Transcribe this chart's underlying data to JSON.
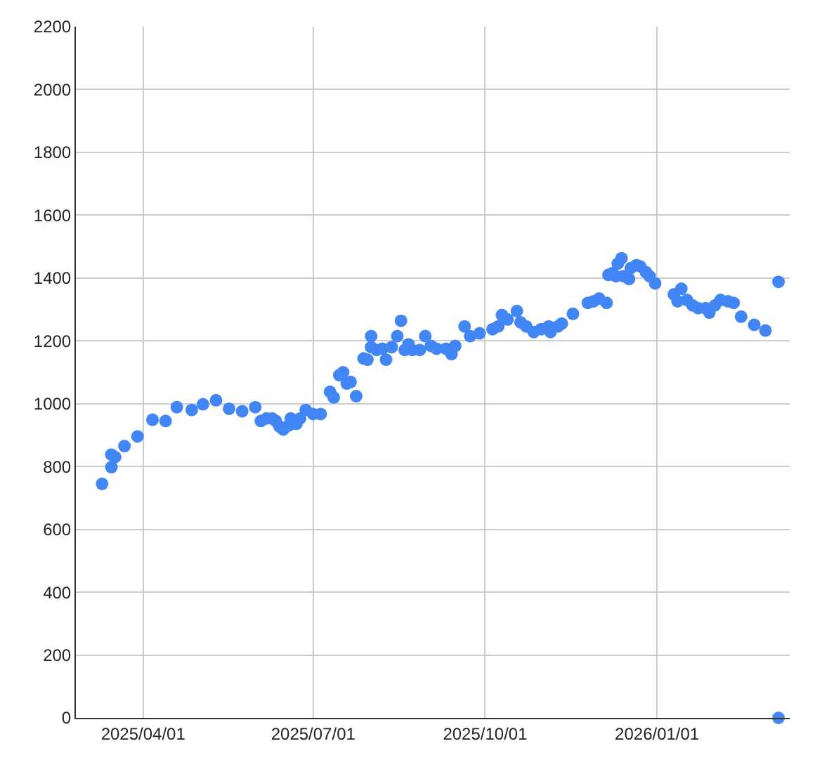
{
  "chart_data": {
    "type": "scatter",
    "x": [
      "2025-03-10",
      "2025-03-15",
      "2025-03-15",
      "2025-03-17",
      "2025-03-22",
      "2025-03-29",
      "2025-04-06",
      "2025-04-13",
      "2025-04-19",
      "2025-04-27",
      "2025-05-03",
      "2025-05-10",
      "2025-05-17",
      "2025-05-24",
      "2025-05-31",
      "2025-06-03",
      "2025-06-06",
      "2025-06-09",
      "2025-06-11",
      "2025-06-13",
      "2025-06-15",
      "2025-06-18",
      "2025-06-19",
      "2025-06-22",
      "2025-06-24",
      "2025-06-27",
      "2025-07-01",
      "2025-07-05",
      "2025-07-10",
      "2025-07-12",
      "2025-07-15",
      "2025-07-17",
      "2025-07-19",
      "2025-07-21",
      "2025-07-24",
      "2025-07-28",
      "2025-07-30",
      "2025-08-01",
      "2025-08-01",
      "2025-08-04",
      "2025-08-07",
      "2025-08-09",
      "2025-08-12",
      "2025-08-15",
      "2025-08-17",
      "2025-08-19",
      "2025-08-21",
      "2025-08-23",
      "2025-08-27",
      "2025-08-30",
      "2025-09-02",
      "2025-09-05",
      "2025-09-10",
      "2025-09-13",
      "2025-09-15",
      "2025-09-20",
      "2025-09-23",
      "2025-09-28",
      "2025-10-05",
      "2025-10-08",
      "2025-10-10",
      "2025-10-13",
      "2025-10-18",
      "2025-10-20",
      "2025-10-23",
      "2025-10-27",
      "2025-10-31",
      "2025-11-04",
      "2025-11-05",
      "2025-11-09",
      "2025-11-11",
      "2025-11-17",
      "2025-11-25",
      "2025-11-28",
      "2025-12-01",
      "2025-12-05",
      "2025-12-06",
      "2025-12-08",
      "2025-12-10",
      "2025-12-11",
      "2025-12-13",
      "2025-12-14",
      "2025-12-17",
      "2025-12-18",
      "2025-12-21",
      "2025-12-23",
      "2025-12-26",
      "2025-12-28",
      "2025-12-31",
      "2026-01-10",
      "2026-01-12",
      "2026-01-14",
      "2026-01-17",
      "2026-01-20",
      "2026-01-23",
      "2026-01-27",
      "2026-01-29",
      "2026-02-01",
      "2026-02-04",
      "2026-02-08",
      "2026-02-11",
      "2026-02-15",
      "2026-02-22",
      "2026-02-28",
      "2026-03-07",
      "2026-03-07"
    ],
    "values": [
      745,
      798,
      838,
      830,
      865,
      896,
      949,
      945,
      989,
      980,
      998,
      1011,
      984,
      976,
      989,
      945,
      953,
      953,
      945,
      927,
      918,
      931,
      953,
      936,
      953,
      980,
      967,
      967,
      1038,
      1020,
      1091,
      1100,
      1064,
      1069,
      1024,
      1144,
      1140,
      1215,
      1180,
      1171,
      1175,
      1140,
      1180,
      1215,
      1264,
      1171,
      1189,
      1171,
      1171,
      1215,
      1184,
      1175,
      1175,
      1158,
      1184,
      1246,
      1215,
      1224,
      1237,
      1246,
      1282,
      1268,
      1295,
      1259,
      1246,
      1228,
      1237,
      1246,
      1228,
      1246,
      1255,
      1286,
      1321,
      1326,
      1335,
      1321,
      1410,
      1415,
      1406,
      1446,
      1463,
      1406,
      1397,
      1432,
      1441,
      1437,
      1419,
      1406,
      1383,
      1348,
      1326,
      1366,
      1330,
      1313,
      1304,
      1304,
      1290,
      1313,
      1330,
      1326,
      1321,
      1277,
      1251,
      1233,
      1388,
      0
    ],
    "color": "#4285f4",
    "marker": "circle",
    "xlim": [
      "2025-02-24",
      "2026-03-13"
    ],
    "xticks": [
      {
        "value": "2025-04-01",
        "label": "2025/04/01"
      },
      {
        "value": "2025-07-01",
        "label": "2025/07/01"
      },
      {
        "value": "2025-10-01",
        "label": "2025/10/01"
      },
      {
        "value": "2026-01-01",
        "label": "2026/01/01"
      }
    ],
    "ylim": [
      0,
      2200
    ],
    "yticks": [
      0,
      200,
      400,
      600,
      800,
      1000,
      1200,
      1400,
      1600,
      1800,
      2000,
      2200
    ],
    "grid": true,
    "legend": false
  }
}
